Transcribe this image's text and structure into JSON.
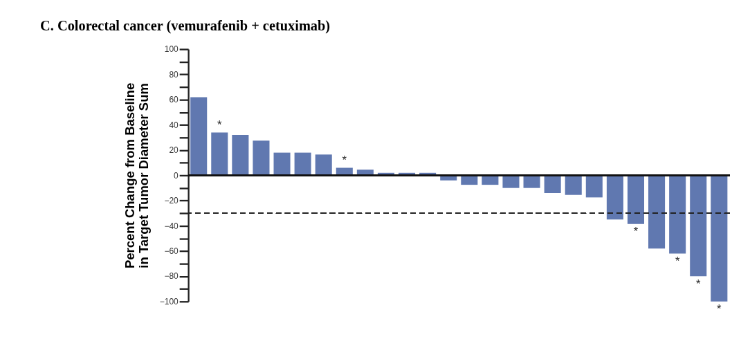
{
  "chart_data": {
    "type": "bar",
    "title": "C. Colorectal cancer (vemurafenib + cetuximab)",
    "ylabel": "Percent Change from Baseline\nin Target Tumor Diameter Sum",
    "categories": [
      null,
      null,
      null,
      null,
      null,
      null,
      null,
      null,
      null,
      null,
      null,
      null,
      null,
      null,
      null,
      null,
      null,
      null,
      null,
      null,
      null,
      null,
      null,
      null,
      null,
      null
    ],
    "values": [
      62,
      34,
      32,
      27.5,
      18,
      18,
      16.5,
      6,
      4.5,
      2,
      2,
      2,
      -4,
      -7.5,
      -7.5,
      -10,
      -10,
      -14,
      -15.5,
      -17.5,
      -35,
      -38.5,
      -58,
      -62,
      -80,
      -100
    ],
    "value_labels": [
      null,
      "*",
      null,
      null,
      null,
      null,
      null,
      "*",
      null,
      null,
      null,
      null,
      null,
      null,
      null,
      null,
      null,
      null,
      null,
      null,
      null,
      "*",
      null,
      "*",
      "*",
      "*"
    ],
    "color": "#6078b0",
    "ylim": [
      -100,
      100
    ],
    "yticks": [
      -100,
      {
        "value": -90,
        "label": null
      },
      -80,
      {
        "value": -70,
        "label": null
      },
      -60,
      {
        "value": -50,
        "label": null
      },
      -40,
      {
        "value": -30,
        "label": null
      },
      -20,
      {
        "value": -10,
        "label": null
      },
      0,
      {
        "value": 10,
        "label": null
      },
      20,
      {
        "value": 30,
        "label": null
      },
      40,
      {
        "value": 50,
        "label": null
      },
      60,
      {
        "value": 70,
        "label": null
      },
      80,
      {
        "value": 90,
        "label": null
      },
      100
    ],
    "ref_lines": [
      {
        "axis": "y",
        "value": -30,
        "color": "#222222",
        "line_style": "dashed"
      }
    ],
    "grid": false
  }
}
